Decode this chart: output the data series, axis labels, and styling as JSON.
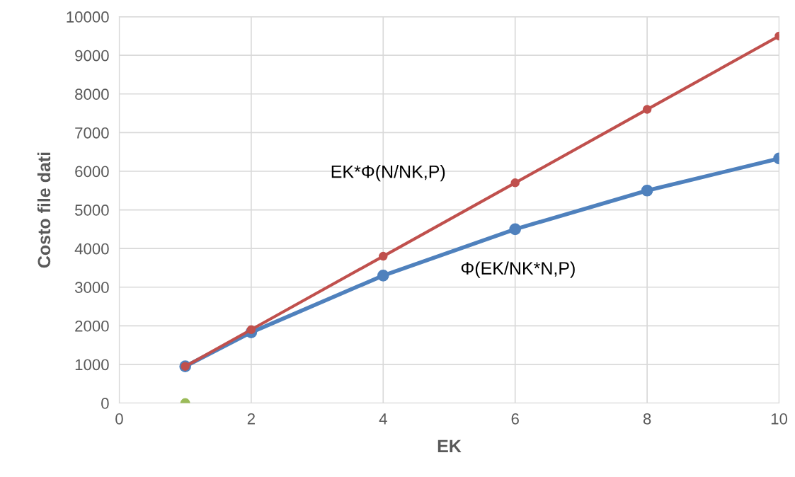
{
  "chart_data": {
    "type": "line",
    "xlabel": "EK",
    "ylabel": "Costo file dati",
    "x": [
      1,
      2,
      4,
      6,
      8,
      10
    ],
    "series": [
      {
        "color": "#4f81bd",
        "values": [
          950,
          1830,
          3300,
          4500,
          5500,
          6330
        ]
      },
      {
        "color": "#c0504d",
        "values": [
          950,
          1900,
          3800,
          5700,
          7600,
          9500
        ]
      },
      {
        "type": "scatter",
        "color": "#9bbb59",
        "x": [
          1
        ],
        "values": [
          0
        ]
      }
    ],
    "annotations": [
      "EK*Φ(N/NK,P)",
      "Φ(EK/NK*N,P)"
    ],
    "xlim": [
      0,
      10
    ],
    "xticks": [
      0,
      2,
      4,
      6,
      8,
      10
    ],
    "ylim": [
      0,
      10000
    ],
    "yticks": [
      0,
      1000,
      2000,
      3000,
      4000,
      5000,
      6000,
      7000,
      8000,
      9000,
      10000
    ],
    "grid": true,
    "marker": "circle",
    "line_style": "solid",
    "legend": false
  }
}
